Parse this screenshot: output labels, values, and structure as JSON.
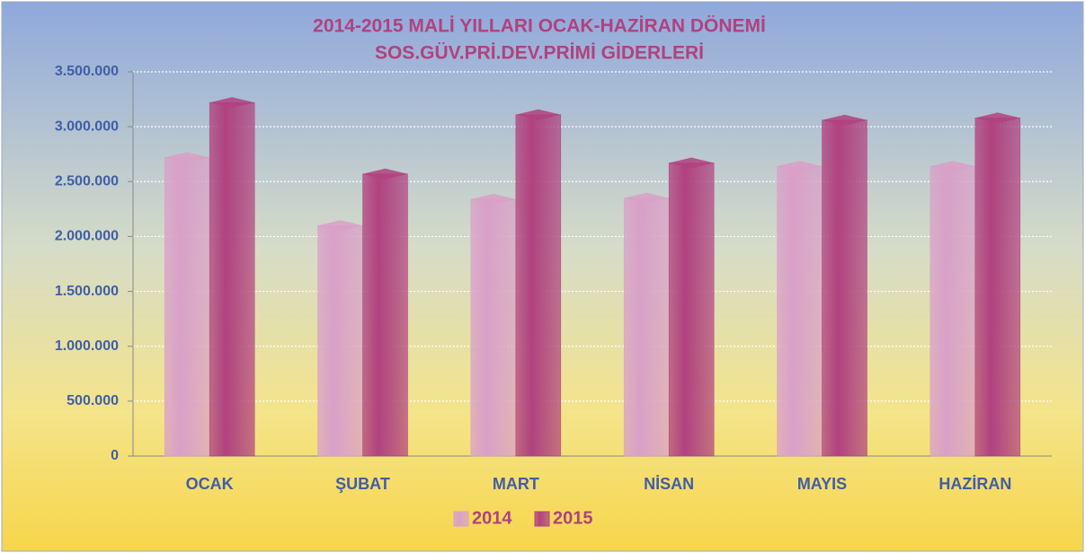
{
  "chart_data": {
    "type": "bar",
    "title": "2014-2015  MALİ YILLARI OCAK-HAZİRAN  DÖNEMİ",
    "subtitle": "SOS.GÜV.PRİ.DEV.PRİMİ   GİDERLERİ",
    "categories": [
      "OCAK",
      "ŞUBAT",
      "MART",
      "NİSAN",
      "MAYIS",
      "HAZİRAN"
    ],
    "series": [
      {
        "name": "2014",
        "color": "#d9a0c8",
        "values": [
          2720000,
          2100000,
          2340000,
          2350000,
          2640000,
          2640000
        ]
      },
      {
        "name": "2015",
        "color": "#b0427f",
        "values": [
          3220000,
          2570000,
          3110000,
          2670000,
          3060000,
          3080000
        ]
      }
    ],
    "ylim": [
      0,
      3500000
    ],
    "yticks": [
      0,
      {
        "value": 500000,
        "label": "500.000"
      },
      {
        "value": 1000000,
        "label": "1.000.000"
      },
      {
        "value": 1500000,
        "label": "1.500.000"
      },
      {
        "value": 2000000,
        "label": "2.000.000"
      },
      {
        "value": 2500000,
        "label": "2.500.000"
      },
      {
        "value": 3000000,
        "label": "3.000.000"
      },
      {
        "value": 3500000,
        "label": "3.500.000"
      }
    ],
    "grid": true,
    "legend": "bottom"
  }
}
